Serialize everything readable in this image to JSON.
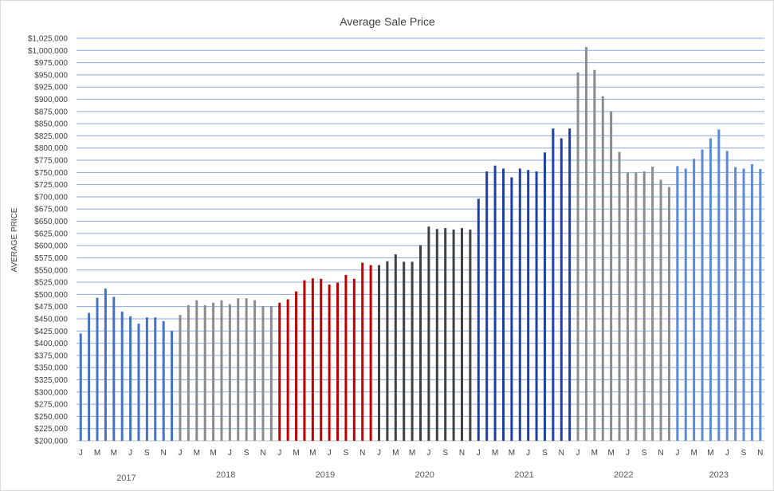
{
  "chart_data": {
    "type": "bar",
    "title": "Average Sale Price",
    "ylabel": "AVERAGE PRICE",
    "xlabel": "",
    "ylim": [
      200000,
      1025000
    ],
    "ytick_step": 25000,
    "y_tick_labels": [
      "$200,000",
      "$225,000",
      "$250,000",
      "$275,000",
      "$300,000",
      "$325,000",
      "$350,000",
      "$375,000",
      "$400,000",
      "$425,000",
      "$450,000",
      "$475,000",
      "$500,000",
      "$525,000",
      "$550,000",
      "$575,000",
      "$600,000",
      "$625,000",
      "$650,000",
      "$675,000",
      "$700,000",
      "$725,000",
      "$750,000",
      "$775,000",
      "$800,000",
      "$825,000",
      "$850,000",
      "$875,000",
      "$900,000",
      "$925,000",
      "$950,000",
      "$975,000",
      "$1,000,000",
      "$1,025,000"
    ],
    "grid": true,
    "legend": "none",
    "x_tick_labels": [
      "J",
      "M",
      "M",
      "J",
      "S",
      "N",
      "J",
      "M",
      "M",
      "J",
      "S",
      "N",
      "J",
      "M",
      "M",
      "J",
      "S",
      "N",
      "J",
      "M",
      "M",
      "J",
      "S",
      "N",
      "J",
      "M",
      "M",
      "J",
      "S",
      "N",
      "J",
      "M",
      "M",
      "J",
      "S",
      "N",
      "J",
      "M",
      "M",
      "J",
      "S",
      "N"
    ],
    "groups": [
      {
        "label": "2017",
        "color": "#4472c4",
        "values": [
          420000,
          462000,
          493000,
          512000,
          495000,
          465000,
          455000,
          440000,
          453000,
          453000,
          445000,
          425000
        ]
      },
      {
        "label": "2018",
        "color": "#8c8c8c",
        "values": [
          458000,
          478000,
          488000,
          478000,
          483000,
          488000,
          480000,
          492000,
          492000,
          488000,
          476000,
          476000
        ]
      },
      {
        "label": "2019",
        "color": "#c00000",
        "values": [
          483000,
          490000,
          506000,
          529000,
          533000,
          532000,
          520000,
          524000,
          540000,
          532000,
          565000,
          560000
        ]
      },
      {
        "label": "2020",
        "color": "#404040",
        "values": [
          560000,
          568000,
          582000,
          567000,
          567000,
          601000,
          639000,
          634000,
          636000,
          633000,
          636000,
          633000
        ]
      },
      {
        "label": "2021",
        "color": "#1f3fa6",
        "values": [
          696000,
          752000,
          764000,
          758000,
          740000,
          758000,
          755000,
          752000,
          791000,
          840000,
          820000,
          840000
        ]
      },
      {
        "label": "2022",
        "color": "#8c8c8c",
        "values": [
          955000,
          1007000,
          960000,
          906000,
          875000,
          792000,
          750000,
          750000,
          752000,
          762000,
          735000,
          720000
        ]
      },
      {
        "label": "2023",
        "color": "#5b8ad6",
        "values": [
          763000,
          758000,
          778000,
          797000,
          820000,
          838000,
          794000,
          761000,
          758000,
          767000,
          757000
        ]
      }
    ]
  }
}
